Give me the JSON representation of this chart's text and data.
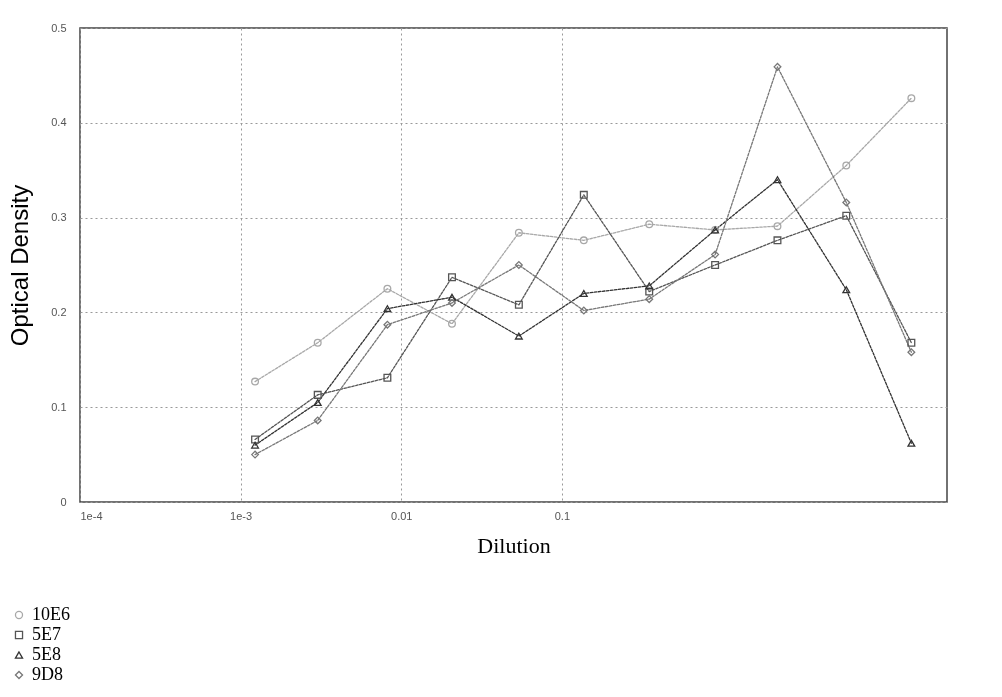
{
  "chart_data": {
    "type": "line",
    "xlabel": "Dilution",
    "ylabel": "Optical Density",
    "x": [
      0.00123,
      0.00302,
      0.0082,
      0.0207,
      0.054,
      0.137,
      0.35,
      0.9,
      2.2,
      5.9,
      15
    ],
    "xlim": [
      0.0001,
      25
    ],
    "xticks": [
      {
        "value": 0.0001,
        "label": "1e-4"
      },
      {
        "value": 0.001,
        "label": "1e-3"
      },
      0.01,
      0.1
    ],
    "ylim": [
      0,
      0.5
    ],
    "yticks": [
      0,
      0.1,
      0.2,
      0.3,
      0.4,
      0.5
    ],
    "log": "x",
    "grid": true,
    "legend": "bottom left",
    "line_style": "dotted",
    "series": [
      {
        "name": "10E6",
        "color": "#a8a8a8",
        "marker": "circle",
        "values": [
          0.127,
          0.168,
          0.225,
          0.188,
          0.284,
          0.276,
          0.293,
          0.287,
          0.291,
          0.355,
          0.426
        ]
      },
      {
        "name": "5E7",
        "color": "#555555",
        "marker": "square",
        "values": [
          0.066,
          0.113,
          0.131,
          0.237,
          0.208,
          0.324,
          0.222,
          0.25,
          0.276,
          0.302,
          0.168
        ]
      },
      {
        "name": "5E8",
        "color": "#333333",
        "marker": "triangle",
        "values": [
          0.06,
          0.105,
          0.204,
          0.216,
          0.175,
          0.22,
          0.228,
          0.287,
          0.34,
          0.224,
          0.062
        ]
      },
      {
        "name": "9D8",
        "color": "#777777",
        "marker": "diamond",
        "values": [
          0.05,
          0.086,
          0.187,
          0.21,
          0.25,
          0.202,
          0.214,
          0.261,
          0.459,
          0.316,
          0.158
        ]
      }
    ]
  }
}
